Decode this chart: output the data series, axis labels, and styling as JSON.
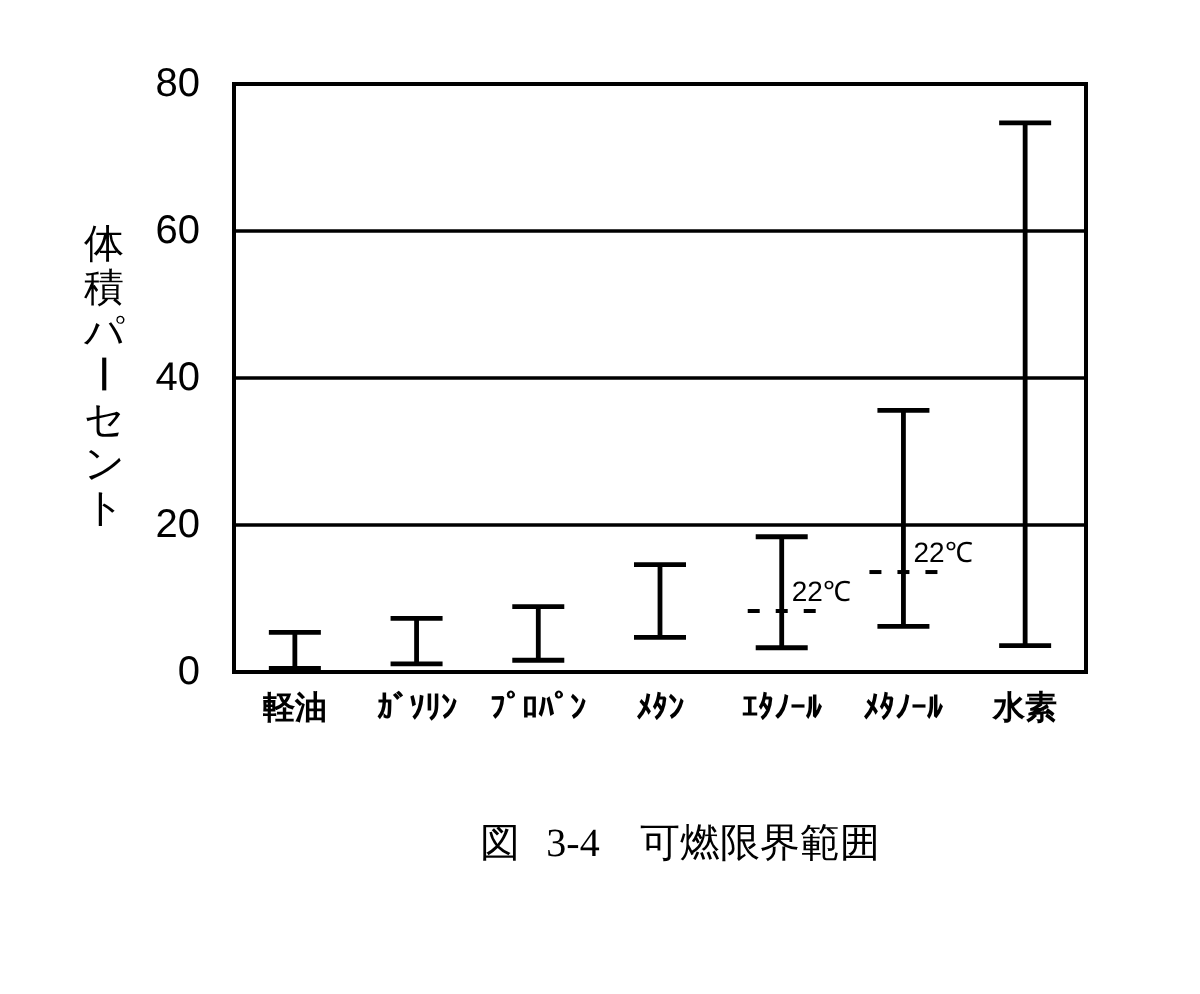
{
  "chart_data": {
    "type": "bar",
    "title": "図 3-4　可燃限界範囲",
    "ylabel": "体積パーセント",
    "categories": [
      "軽油",
      "ｶﾞｿﾘﾝ",
      "ﾌﾟﾛﾊﾟﾝ",
      "ﾒﾀﾝ",
      "ｴﾀﾉｰﾙ",
      "ﾒﾀﾉｰﾙ",
      "水素"
    ],
    "series": [
      {
        "color": "#000000",
        "base": [
          0.5,
          1.1,
          1.6,
          4.7,
          3.3,
          6.2,
          3.6
        ],
        "values": [
          4.9,
          6.2,
          7.3,
          9.9,
          15.1,
          29.4,
          71.1
        ]
      },
      {
        "type": "scatter",
        "x": [
          "ｴﾀﾉｰﾙ",
          "ﾒﾀﾉｰﾙ"
        ],
        "values": [
          8.3,
          13.6
        ],
        "color": "#000000",
        "line_style": "dashed"
      }
    ],
    "ylim": [
      0,
      80
    ],
    "yticks": [
      0,
      20,
      40,
      60,
      80
    ],
    "grid": "y",
    "annotations": [
      {
        "text": "22℃",
        "x": "ｴﾀﾉｰﾙ",
        "y": 8.3
      },
      {
        "text": "22℃",
        "x": "ﾒﾀﾉｰﾙ",
        "y": 13.6
      }
    ]
  }
}
